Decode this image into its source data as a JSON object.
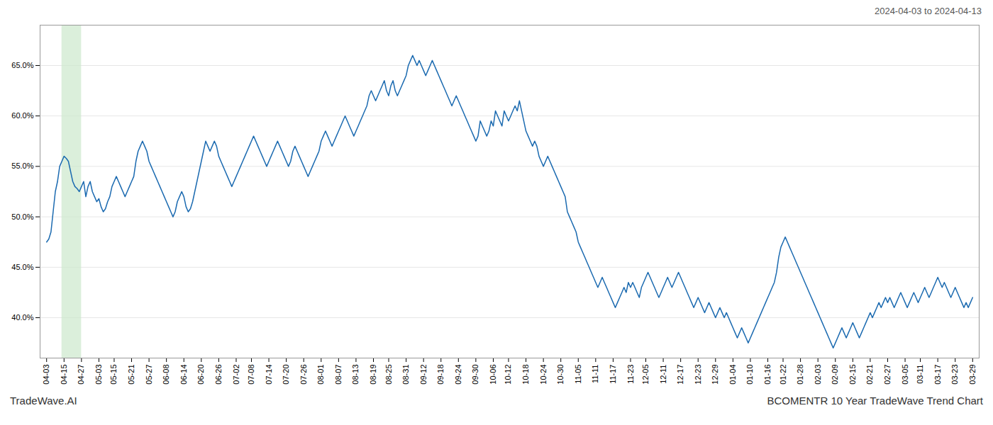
{
  "chart_data": {
    "type": "line",
    "title": "2024-04-03 to 2024-04-13",
    "footer_left": "TradeWave.AI",
    "footer_right": "BCOMENTR 10 Year TradeWave Trend Chart",
    "color": "#1b6ab0",
    "grid": true,
    "highlight": {
      "x": [
        7,
        16
      ],
      "color": "#cce8cc"
    },
    "ylim": [
      36,
      69
    ],
    "yticks": [
      {
        "value": 40.0,
        "label": "40.0%"
      },
      {
        "value": 45.0,
        "label": "45.0%"
      },
      {
        "value": 50.0,
        "label": "50.0%"
      },
      {
        "value": 55.0,
        "label": "55.0%"
      },
      {
        "value": 60.0,
        "label": "60.0%"
      },
      {
        "value": 65.0,
        "label": "65.0%"
      }
    ],
    "categories": [
      "04-03",
      null,
      null,
      null,
      null,
      null,
      null,
      null,
      "04-15",
      null,
      null,
      null,
      null,
      null,
      null,
      null,
      "04-27",
      null,
      null,
      null,
      null,
      null,
      null,
      null,
      "05-03",
      null,
      null,
      null,
      null,
      null,
      null,
      "05-15",
      null,
      null,
      null,
      null,
      null,
      null,
      null,
      "05-21",
      null,
      null,
      null,
      null,
      null,
      null,
      null,
      "05-27",
      null,
      null,
      null,
      null,
      null,
      null,
      null,
      "06-08",
      null,
      null,
      null,
      null,
      null,
      null,
      null,
      "06-14",
      null,
      null,
      null,
      null,
      null,
      null,
      null,
      "06-20",
      null,
      null,
      null,
      null,
      null,
      null,
      null,
      "06-26",
      null,
      null,
      null,
      null,
      null,
      null,
      null,
      "07-02",
      null,
      null,
      null,
      null,
      null,
      null,
      "07-08",
      null,
      null,
      null,
      null,
      null,
      null,
      null,
      "07-14",
      null,
      null,
      null,
      null,
      null,
      null,
      null,
      "07-20",
      null,
      null,
      null,
      null,
      null,
      null,
      null,
      "07-26",
      null,
      null,
      null,
      null,
      null,
      null,
      null,
      "08-01",
      null,
      null,
      null,
      null,
      null,
      null,
      null,
      "08-07",
      null,
      null,
      null,
      null,
      null,
      null,
      null,
      "08-13",
      null,
      null,
      null,
      null,
      null,
      null,
      null,
      "08-19",
      null,
      null,
      null,
      null,
      null,
      null,
      "08-25",
      null,
      null,
      null,
      null,
      null,
      null,
      null,
      "08-31",
      null,
      null,
      null,
      null,
      null,
      null,
      null,
      "09-12",
      null,
      null,
      null,
      null,
      null,
      null,
      null,
      "09-18",
      null,
      null,
      null,
      null,
      null,
      null,
      null,
      "09-24",
      null,
      null,
      null,
      null,
      null,
      null,
      null,
      "09-30",
      null,
      null,
      null,
      null,
      null,
      null,
      null,
      "10-06",
      null,
      null,
      null,
      null,
      null,
      null,
      "10-12",
      null,
      null,
      null,
      null,
      null,
      null,
      null,
      "10-18",
      null,
      null,
      null,
      null,
      null,
      null,
      null,
      "10-24",
      null,
      null,
      null,
      null,
      null,
      null,
      null,
      "10-30",
      null,
      null,
      null,
      null,
      null,
      null,
      null,
      "11-05",
      null,
      null,
      null,
      null,
      null,
      null,
      null,
      "11-11",
      null,
      null,
      null,
      null,
      null,
      null,
      null,
      "11-17",
      null,
      null,
      null,
      null,
      null,
      null,
      null,
      "11-23",
      null,
      null,
      null,
      null,
      null,
      null,
      "12-05",
      null,
      null,
      null,
      null,
      null,
      null,
      null,
      "12-11",
      null,
      null,
      null,
      null,
      null,
      null,
      null,
      "12-17",
      null,
      null,
      null,
      null,
      null,
      null,
      null,
      "12-23",
      null,
      null,
      null,
      null,
      null,
      null,
      null,
      "12-29",
      null,
      null,
      null,
      null,
      null,
      null,
      null,
      "01-04",
      null,
      null,
      null,
      null,
      null,
      null,
      null,
      "01-10",
      null,
      null,
      null,
      null,
      null,
      null,
      null,
      "01-16",
      null,
      null,
      null,
      null,
      null,
      null,
      "01-22",
      null,
      null,
      null,
      null,
      null,
      null,
      null,
      "01-28",
      null,
      null,
      null,
      null,
      null,
      null,
      null,
      "02-03",
      null,
      null,
      null,
      null,
      null,
      null,
      null,
      "02-09",
      null,
      null,
      null,
      null,
      null,
      null,
      null,
      "02-15",
      null,
      null,
      null,
      null,
      null,
      null,
      null,
      "02-21",
      null,
      null,
      null,
      null,
      null,
      null,
      null,
      "02-27",
      null,
      null,
      null,
      null,
      null,
      null,
      null,
      "03-05",
      null,
      null,
      null,
      null,
      null,
      null,
      "03-11",
      null,
      null,
      null,
      null,
      null,
      null,
      null,
      "03-17",
      null,
      null,
      null,
      null,
      null,
      null,
      null,
      "03-23",
      null,
      null,
      null,
      null,
      null,
      null,
      null,
      "03-29"
    ],
    "values": [
      47.5,
      47.8,
      48.5,
      50.5,
      52.5,
      53.5,
      55.0,
      55.5,
      56.0,
      55.8,
      55.5,
      54.5,
      53.5,
      53.0,
      52.8,
      52.5,
      53.0,
      53.5,
      52.0,
      53.0,
      53.5,
      52.5,
      52.0,
      51.5,
      51.8,
      51.0,
      50.5,
      50.8,
      51.5,
      52.0,
      53.0,
      53.5,
      54.0,
      53.5,
      53.0,
      52.5,
      52.0,
      52.5,
      53.0,
      53.5,
      54.0,
      55.5,
      56.5,
      57.0,
      57.5,
      57.0,
      56.5,
      55.5,
      55.0,
      54.5,
      54.0,
      53.5,
      53.0,
      52.5,
      52.0,
      51.5,
      51.0,
      50.5,
      50.0,
      50.5,
      51.5,
      52.0,
      52.5,
      52.0,
      51.0,
      50.5,
      50.8,
      51.5,
      52.5,
      53.5,
      54.5,
      55.5,
      56.5,
      57.5,
      57.0,
      56.5,
      57.0,
      57.5,
      57.0,
      56.0,
      55.5,
      55.0,
      54.5,
      54.0,
      53.5,
      53.0,
      53.5,
      54.0,
      54.5,
      55.0,
      55.5,
      56.0,
      56.5,
      57.0,
      57.5,
      58.0,
      57.5,
      57.0,
      56.5,
      56.0,
      55.5,
      55.0,
      55.5,
      56.0,
      56.5,
      57.0,
      57.5,
      57.0,
      56.5,
      56.0,
      55.5,
      55.0,
      55.5,
      56.5,
      57.0,
      56.5,
      56.0,
      55.5,
      55.0,
      54.5,
      54.0,
      54.5,
      55.0,
      55.5,
      56.0,
      56.5,
      57.5,
      58.0,
      58.5,
      58.0,
      57.5,
      57.0,
      57.5,
      58.0,
      58.5,
      59.0,
      59.5,
      60.0,
      59.5,
      59.0,
      58.5,
      58.0,
      58.5,
      59.0,
      59.5,
      60.0,
      60.5,
      61.0,
      62.0,
      62.5,
      62.0,
      61.5,
      62.0,
      62.5,
      63.0,
      63.5,
      62.5,
      62.0,
      63.0,
      63.5,
      62.5,
      62.0,
      62.5,
      63.0,
      63.5,
      64.0,
      65.0,
      65.5,
      66.0,
      65.5,
      65.0,
      65.5,
      65.0,
      64.5,
      64.0,
      64.5,
      65.0,
      65.5,
      65.0,
      64.5,
      64.0,
      63.5,
      63.0,
      62.5,
      62.0,
      61.5,
      61.0,
      61.5,
      62.0,
      61.5,
      61.0,
      60.5,
      60.0,
      59.5,
      59.0,
      58.5,
      58.0,
      57.5,
      58.0,
      59.5,
      59.0,
      58.5,
      58.0,
      58.5,
      59.5,
      59.0,
      60.5,
      60.0,
      59.5,
      59.0,
      60.5,
      60.0,
      59.5,
      60.0,
      60.5,
      61.0,
      60.5,
      61.5,
      60.5,
      59.5,
      58.5,
      58.0,
      57.5,
      57.0,
      57.5,
      57.0,
      56.0,
      55.5,
      55.0,
      55.5,
      56.0,
      55.5,
      55.0,
      54.5,
      54.0,
      53.5,
      53.0,
      52.5,
      52.0,
      50.5,
      50.0,
      49.5,
      49.0,
      48.5,
      47.5,
      47.0,
      46.5,
      46.0,
      45.5,
      45.0,
      44.5,
      44.0,
      43.5,
      43.0,
      43.5,
      44.0,
      43.5,
      43.0,
      42.5,
      42.0,
      41.5,
      41.0,
      41.5,
      42.0,
      42.5,
      43.0,
      42.5,
      43.5,
      43.0,
      43.5,
      43.0,
      42.5,
      42.0,
      43.0,
      43.5,
      44.0,
      44.5,
      44.0,
      43.5,
      43.0,
      42.5,
      42.0,
      42.5,
      43.0,
      43.5,
      44.0,
      43.5,
      43.0,
      43.5,
      44.0,
      44.5,
      44.0,
      43.5,
      43.0,
      42.5,
      42.0,
      41.5,
      41.0,
      41.5,
      42.0,
      41.5,
      41.0,
      40.5,
      41.0,
      41.5,
      41.0,
      40.5,
      40.0,
      40.5,
      41.0,
      40.5,
      40.0,
      40.5,
      40.0,
      39.5,
      39.0,
      38.5,
      38.0,
      38.5,
      39.0,
      38.5,
      38.0,
      37.5,
      38.0,
      38.5,
      39.0,
      39.5,
      40.0,
      40.5,
      41.0,
      41.5,
      42.0,
      42.5,
      43.0,
      43.5,
      44.5,
      46.0,
      47.0,
      47.5,
      48.0,
      47.5,
      47.0,
      46.5,
      46.0,
      45.5,
      45.0,
      44.5,
      44.0,
      43.5,
      43.0,
      42.5,
      42.0,
      41.5,
      41.0,
      40.5,
      40.0,
      39.5,
      39.0,
      38.5,
      38.0,
      37.5,
      37.0,
      37.5,
      38.0,
      38.5,
      39.0,
      38.5,
      38.0,
      38.5,
      39.0,
      39.5,
      39.0,
      38.5,
      38.0,
      38.5,
      39.0,
      39.5,
      40.0,
      40.5,
      40.0,
      40.5,
      41.0,
      41.5,
      41.0,
      41.5,
      42.0,
      41.5,
      42.0,
      41.5,
      41.0,
      41.5,
      42.0,
      42.5,
      42.0,
      41.5,
      41.0,
      41.5,
      42.0,
      42.5,
      42.0,
      41.5,
      42.0,
      42.5,
      43.0,
      42.5,
      42.0,
      42.5,
      43.0,
      43.5,
      44.0,
      43.5,
      43.0,
      43.5,
      43.0,
      42.5,
      42.0,
      42.5,
      43.0,
      42.5,
      42.0,
      41.5,
      41.0,
      41.5,
      41.0,
      41.5,
      42.0
    ]
  }
}
